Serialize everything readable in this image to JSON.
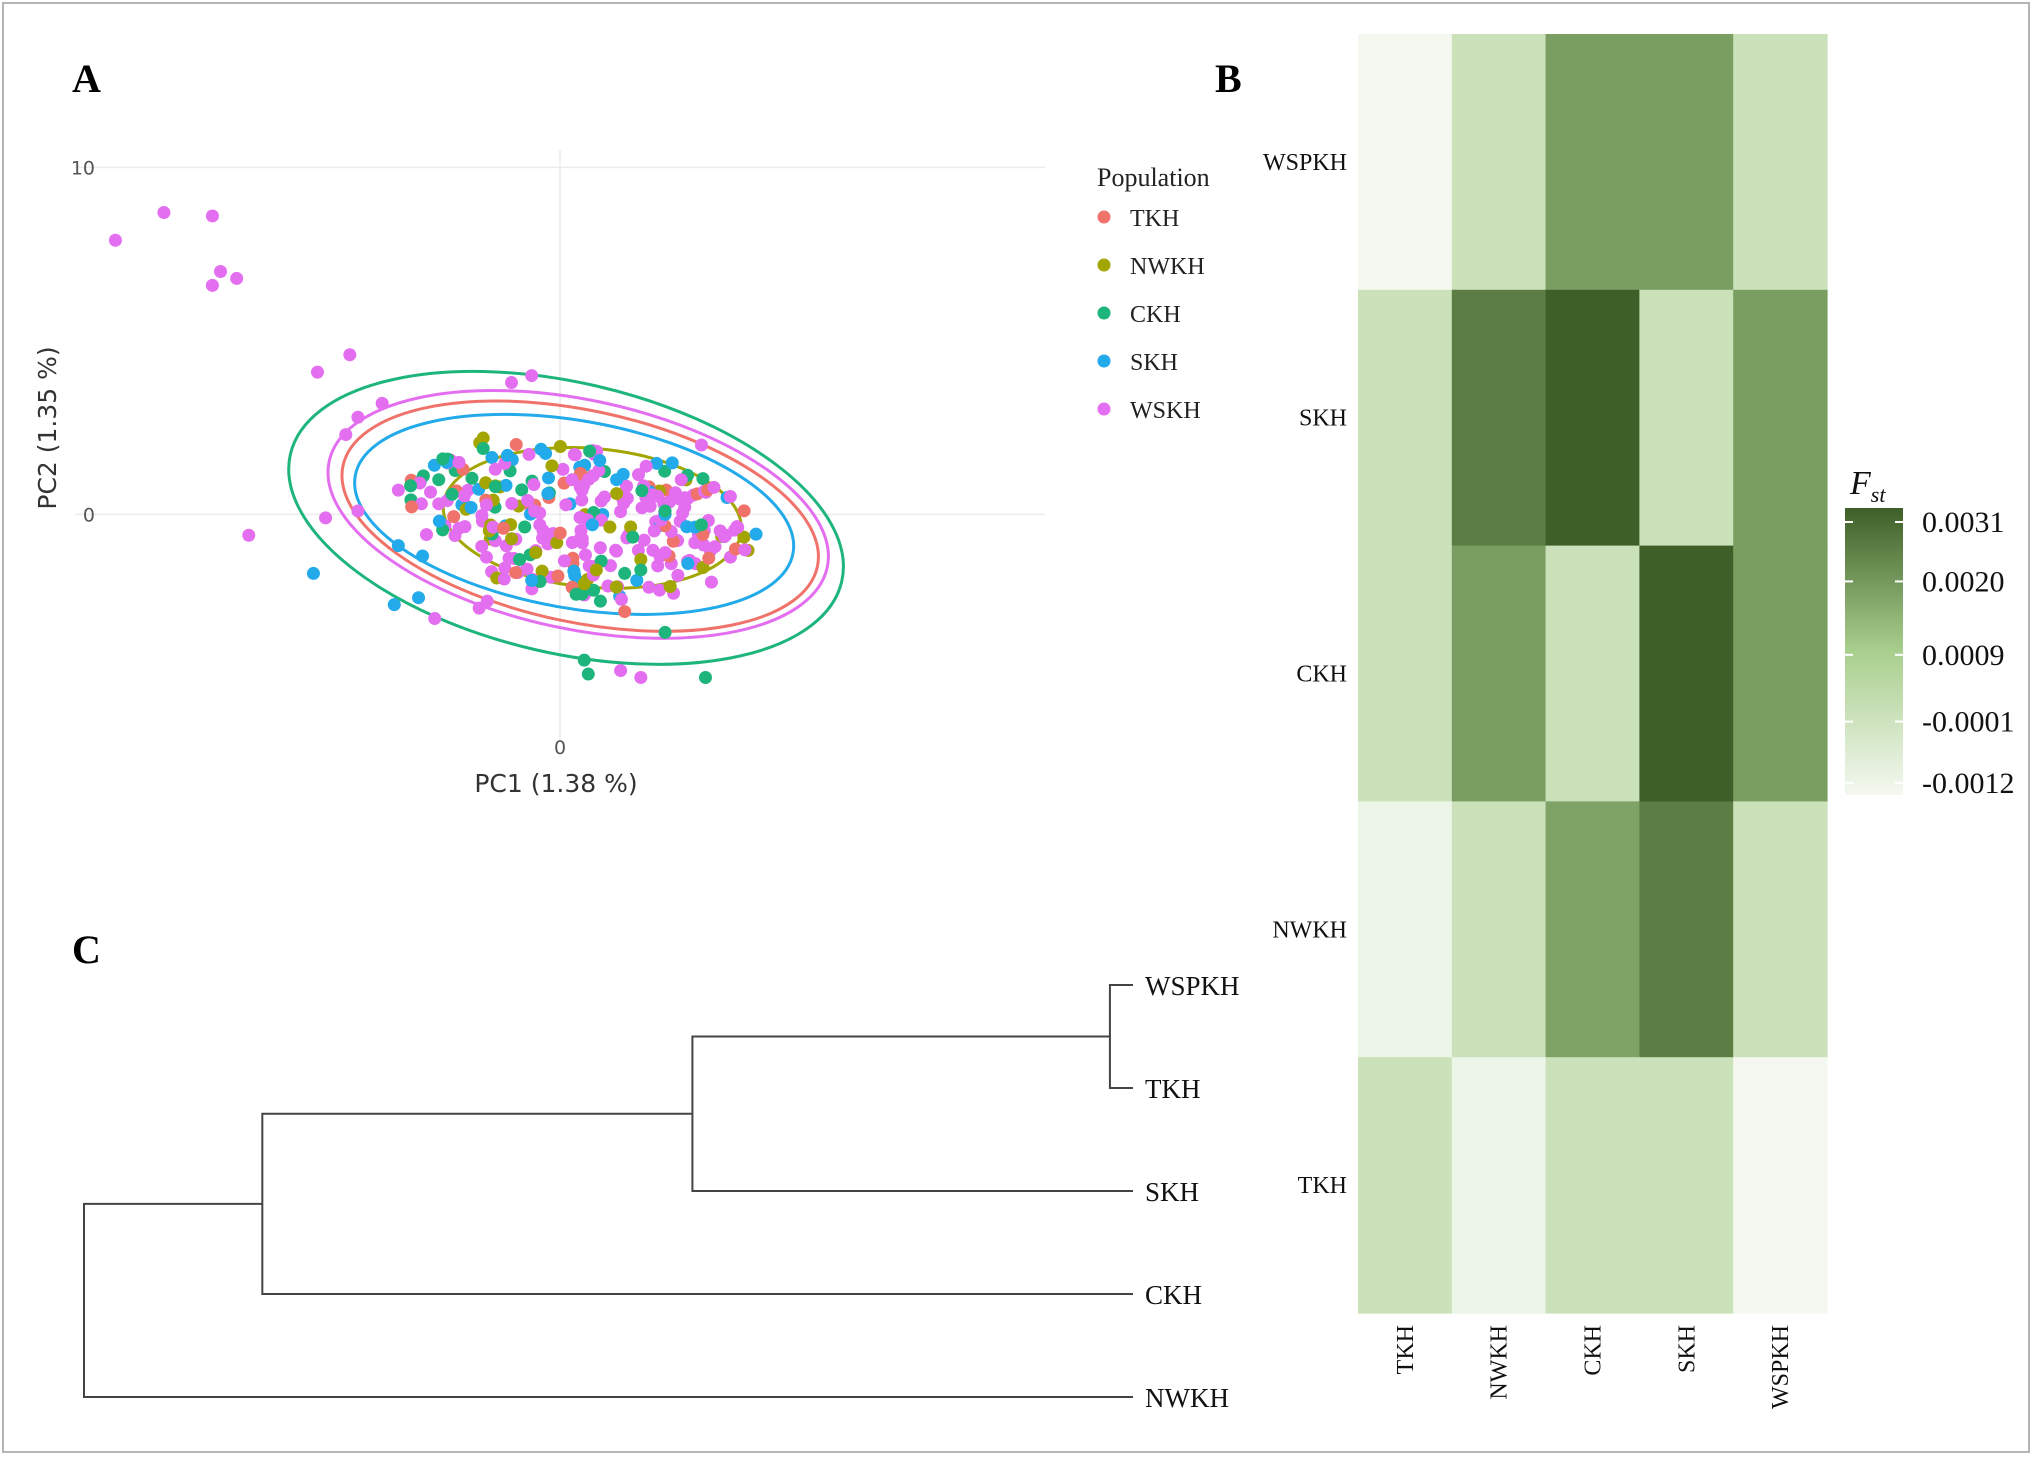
{
  "panels": {
    "a": "A",
    "b": "B",
    "c": "C"
  },
  "colors": {
    "TKH": "#F0736B",
    "NWKH": "#A3A500",
    "CKH": "#1DB57C",
    "SKH": "#22AAEA",
    "WSKH": "#E36FF0",
    "heat_low": "#f4f8f1",
    "heat_high": "#3e5f28"
  },
  "chart_data": [
    {
      "type": "scatter",
      "title": "A",
      "xlabel": "PC1 (1.38 %)",
      "ylabel": "PC2 (1.35 %)",
      "xlim": [
        -12,
        12
      ],
      "ylim": [
        -6.5,
        10.5
      ],
      "x_ticks": [
        {
          "v": 0,
          "label": "0"
        }
      ],
      "y_ticks": [
        {
          "v": 10,
          "label": "10"
        },
        {
          "v": 0,
          "label": "0"
        }
      ],
      "legend": {
        "title": "Population",
        "position": "right",
        "entries": [
          {
            "label": "TKH",
            "key": "TKH"
          },
          {
            "label": "NWKH",
            "key": "NWKH"
          },
          {
            "label": "CKH",
            "key": "CKH"
          },
          {
            "label": "SKH",
            "key": "SKH"
          },
          {
            "label": "WSKH",
            "key": "WSKH"
          }
        ]
      },
      "ellipses": [
        {
          "key": "CKH",
          "cx": 0.15,
          "cy": -0.1,
          "rx": 7.0,
          "ry": 3.9,
          "rot": 13
        },
        {
          "key": "WSKH",
          "cx": 0.45,
          "cy": 0.0,
          "rx": 6.3,
          "ry": 3.3,
          "rot": 12
        },
        {
          "key": "TKH",
          "cx": 0.5,
          "cy": -0.05,
          "rx": 6.0,
          "ry": 3.05,
          "rot": 12
        },
        {
          "key": "SKH",
          "cx": 0.35,
          "cy": 0.0,
          "rx": 5.5,
          "ry": 2.7,
          "rot": 10
        },
        {
          "key": "NWKH",
          "cx": 0.8,
          "cy": -0.1,
          "rx": 3.7,
          "ry": 2.0,
          "rot": 5
        }
      ],
      "series": [
        {
          "name": "WSKH",
          "points": [
            [
              -11.0,
              7.9
            ],
            [
              -9.8,
              8.7
            ],
            [
              -8.6,
              6.6
            ],
            [
              -8.4,
              7.0
            ],
            [
              -8.0,
              6.8
            ],
            [
              -8.6,
              8.6
            ],
            [
              -6.0,
              4.1
            ],
            [
              -5.2,
              4.6
            ],
            [
              -4.4,
              3.2
            ],
            [
              -5.0,
              2.8
            ],
            [
              -5.3,
              2.3
            ],
            [
              -7.7,
              -0.6
            ],
            [
              -5.0,
              0.1
            ],
            [
              -5.8,
              -0.1
            ],
            [
              -1.2,
              3.8
            ],
            [
              -0.7,
              4.0
            ],
            [
              -2.5,
              1.5
            ],
            [
              1.5,
              -4.5
            ],
            [
              2.0,
              -4.7
            ],
            [
              -3.1,
              -3.0
            ],
            [
              -2.0,
              -2.7
            ],
            [
              -4.0,
              0.7
            ],
            [
              3.5,
              2.0
            ],
            [
              4.1,
              -0.6
            ],
            [
              -1.8,
              -2.5
            ],
            [
              -0.5,
              -0.3
            ],
            [
              -0.8,
              0.4
            ],
            [
              0.5,
              -0.7
            ],
            [
              1.1,
              0.5
            ],
            [
              0.3,
              1.0
            ],
            [
              -1.6,
              1.3
            ],
            [
              2.6,
              -1.1
            ],
            [
              3.0,
              1.0
            ],
            [
              -2.5,
              -0.4
            ],
            [
              2.2,
              -2.1
            ]
          ]
        },
        {
          "name": "CKH",
          "points": [
            [
              0.6,
              -4.2
            ],
            [
              0.7,
              -4.6
            ],
            [
              3.6,
              -4.7
            ],
            [
              2.6,
              -3.4
            ],
            [
              -1.9,
              1.9
            ],
            [
              -2.9,
              1.6
            ],
            [
              3.5,
              -0.3
            ],
            [
              2.0,
              -1.6
            ],
            [
              1.0,
              -2.5
            ],
            [
              -1.6,
              0.8
            ],
            [
              -3.0,
              1.0
            ],
            [
              2.6,
              0.1
            ],
            [
              0.4,
              -2.3
            ],
            [
              -1.0,
              -1.3
            ],
            [
              1.6,
              -1.7
            ]
          ]
        },
        {
          "name": "SKH",
          "points": [
            [
              -6.1,
              -1.7
            ],
            [
              -4.1,
              -2.6
            ],
            [
              -3.5,
              -2.4
            ],
            [
              -4.0,
              -0.9
            ],
            [
              -3.4,
              -1.2
            ],
            [
              -2.8,
              1.5
            ],
            [
              2.6,
              0.0
            ],
            [
              -0.7,
              -1.9
            ],
            [
              1.4,
              1.0
            ],
            [
              0.8,
              -0.3
            ],
            [
              -2.2,
              0.2
            ],
            [
              1.9,
              -1.9
            ],
            [
              -1.3,
              1.7
            ],
            [
              -0.3,
              0.6
            ]
          ]
        },
        {
          "name": "NWKH",
          "points": [
            [
              0.6,
              -2.0
            ],
            [
              -1.9,
              2.2
            ],
            [
              2.0,
              -1.3
            ],
            [
              -0.6,
              -1.1
            ],
            [
              1.4,
              0.6
            ],
            [
              -1.2,
              -0.7
            ],
            [
              0.9,
              -1.6
            ],
            [
              -0.2,
              1.4
            ]
          ]
        },
        {
          "name": "TKH",
          "points": [
            [
              -2.4,
              1.3
            ],
            [
              1.6,
              -2.8
            ],
            [
              0.3,
              -2.1
            ],
            [
              -1.4,
              -0.4
            ],
            [
              2.7,
              -1.2
            ],
            [
              0.1,
              0.9
            ]
          ]
        }
      ]
    },
    {
      "type": "heatmap",
      "title": "B",
      "rows": [
        "WSPKH",
        "SKH",
        "CKH",
        "NWKH",
        "TKH"
      ],
      "cols": [
        "TKH",
        "NWKH",
        "CKH",
        "SKH",
        "WSPKH"
      ],
      "values": [
        [
          -0.0012,
          0.0,
          0.0019,
          0.0019,
          0.0
        ],
        [
          0.0,
          0.0025,
          0.0031,
          0.0,
          0.0019
        ],
        [
          0.0,
          0.0019,
          0.0,
          0.0031,
          0.0019
        ],
        [
          -0.001,
          0.0,
          0.0018,
          0.0025,
          0.0
        ],
        [
          0.0,
          -0.001,
          0.0,
          0.0,
          -0.0012
        ]
      ],
      "colorbar": {
        "title": "F",
        "title_sub": "st",
        "min": -0.0012,
        "max": 0.0031,
        "ticks": [
          {
            "v": 0.0031,
            "label": "0.0031"
          },
          {
            "v": 0.002,
            "label": "0.0020"
          },
          {
            "v": 0.0009,
            "label": "0.0009"
          },
          {
            "v": -0.0001,
            "label": "-0.0001"
          },
          {
            "v": -0.0012,
            "label": "-0.0012"
          }
        ]
      }
    },
    {
      "type": "dendrogram",
      "title": "C",
      "leaves": [
        "WSPKH",
        "TKH",
        "SKH",
        "CKH",
        "NWKH"
      ],
      "max_height": 1.0,
      "merges": [
        {
          "a": "WSPKH",
          "b": "TKH",
          "id": "m1",
          "height": 0.022
        },
        {
          "a": "m1",
          "b": "SKH",
          "id": "m2",
          "height": 0.42
        },
        {
          "a": "m2",
          "b": "CKH",
          "id": "m3",
          "height": 0.83
        },
        {
          "a": "m3",
          "b": "NWKH",
          "id": "m4",
          "height": 1.0
        }
      ]
    }
  ]
}
